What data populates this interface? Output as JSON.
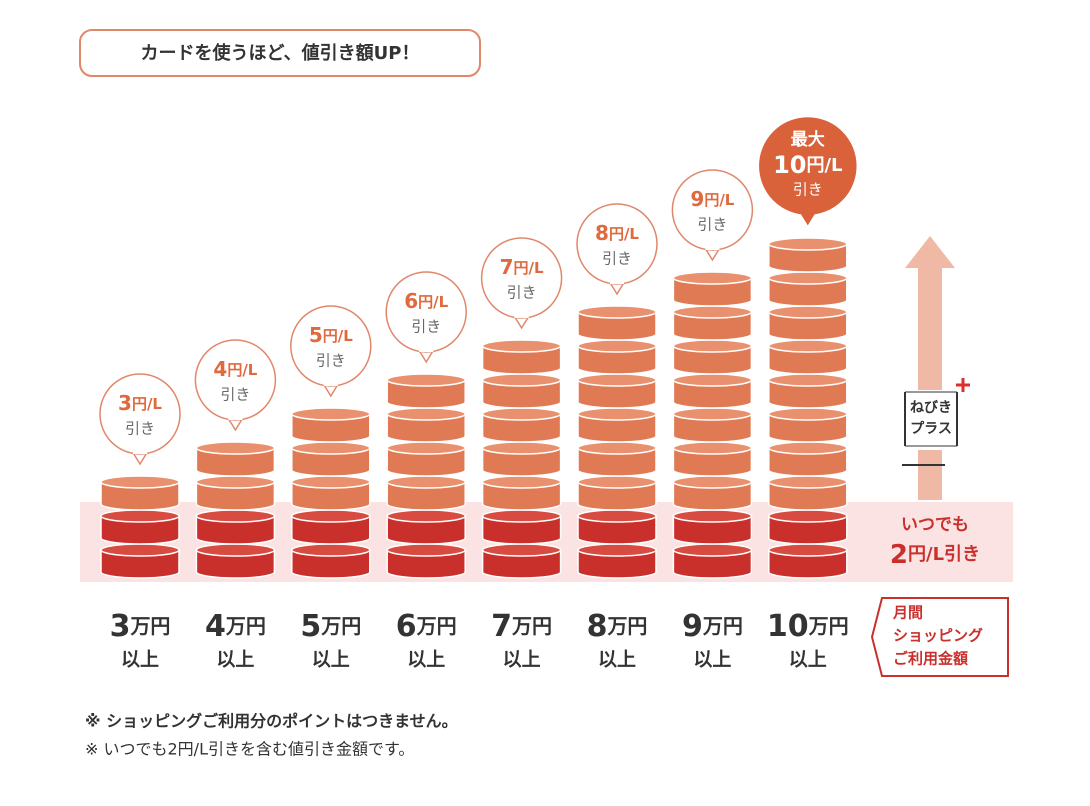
{
  "badge": "カードを使うほど、値引き額UP！",
  "columns": [
    {
      "amount": "3",
      "unit": "円/L",
      "discount": "引き",
      "threshold": "3",
      "threshold_unit": "万円",
      "threshold_suffix": "以上"
    },
    {
      "amount": "4",
      "unit": "円/L",
      "discount": "引き",
      "threshold": "4",
      "threshold_unit": "万円",
      "threshold_suffix": "以上"
    },
    {
      "amount": "5",
      "unit": "円/L",
      "discount": "引き",
      "threshold": "5",
      "threshold_unit": "万円",
      "threshold_suffix": "以上"
    },
    {
      "amount": "6",
      "unit": "円/L",
      "discount": "引き",
      "threshold": "6",
      "threshold_unit": "万円",
      "threshold_suffix": "以上"
    },
    {
      "amount": "7",
      "unit": "円/L",
      "discount": "引き",
      "threshold": "7",
      "threshold_unit": "万円",
      "threshold_suffix": "以上"
    },
    {
      "amount": "8",
      "unit": "円/L",
      "discount": "引き",
      "threshold": "8",
      "threshold_unit": "万円",
      "threshold_suffix": "以上"
    },
    {
      "amount": "9",
      "unit": "円/L",
      "discount": "引き",
      "threshold": "9",
      "threshold_unit": "万円",
      "threshold_suffix": "以上"
    },
    {
      "prefix": "最大",
      "amount": "10",
      "unit": "円/L",
      "discount": "引き",
      "threshold": "10",
      "threshold_unit": "万円",
      "threshold_suffix": "以上"
    }
  ],
  "plus_label": [
    "ねびき",
    "プラス"
  ],
  "base": {
    "line1": "いつでも",
    "amount": "2",
    "unit": "円/L引き"
  },
  "axis_label": [
    "月間",
    "ショッピング",
    "ご利用金額"
  ],
  "notes": [
    "※ ショッピングご利用分のポイントはつきません。",
    "※ いつでも2円/L引きを含む値引き金額です。"
  ]
}
